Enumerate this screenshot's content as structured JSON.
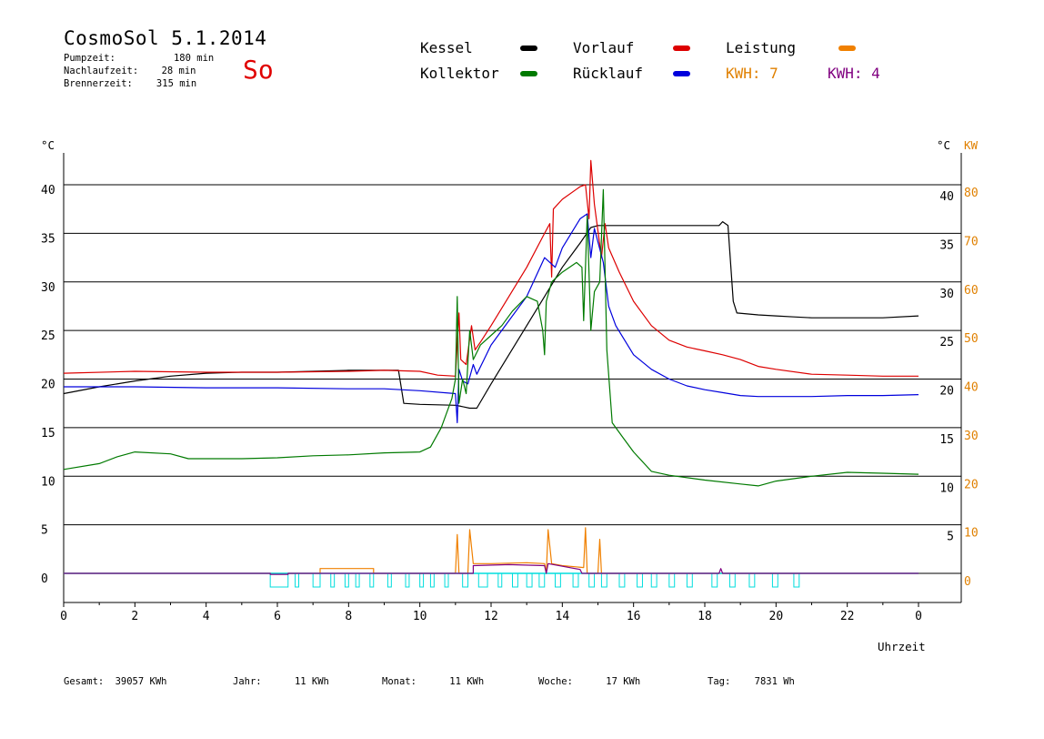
{
  "header": {
    "title": "CosmoSol 5.1.2014",
    "day": "So",
    "stats": [
      {
        "label": "Pumpzeit:",
        "value": "180 min"
      },
      {
        "label": "Nachlaufzeit:",
        "value": "28 min"
      },
      {
        "label": "Brennerzeit:",
        "value": "315 min"
      }
    ]
  },
  "legend": {
    "items": [
      {
        "name": "Kessel",
        "color": "#000000"
      },
      {
        "name": "Vorlauf",
        "color": "#dd0000"
      },
      {
        "name": "Leistung",
        "color": "#f08000"
      },
      {
        "name": "Kollektor",
        "color": "#007a00"
      },
      {
        "name": "Rücklauf",
        "color": "#0000dd"
      }
    ],
    "kwh_orange": "KWH: 7",
    "kwh_purple": "KWH: 4",
    "kwh_orange_color": "#e08000",
    "kwh_purple_color": "#800080"
  },
  "axes": {
    "left_unit": "°C",
    "right_unit_c": "°C",
    "right_unit_kw": "KW",
    "x_label": "Uhrzeit"
  },
  "footer": {
    "gesamt_label": "Gesamt:",
    "gesamt_value": "39057 KWh",
    "jahr_label": "Jahr:",
    "jahr_value": "11 KWh",
    "monat_label": "Monat:",
    "monat_value": "11 KWh",
    "woche_label": "Woche:",
    "woche_value": "17 KWh",
    "tag_label": "Tag:",
    "tag_value": "7831 Wh"
  },
  "chart_data": {
    "type": "line",
    "xlabel": "Uhrzeit",
    "ylabel": "°C",
    "y2label": "KW",
    "xlim": [
      0,
      24
    ],
    "ylim": [
      -3,
      43
    ],
    "x_ticks": [
      "0",
      "2",
      "4",
      "6",
      "8",
      "10",
      "12",
      "14",
      "16",
      "18",
      "20",
      "22",
      "0"
    ],
    "y_ticks": [
      0,
      5,
      10,
      15,
      20,
      25,
      30,
      35,
      40
    ],
    "y_ticks_right": [
      5,
      10,
      15,
      20,
      25,
      30,
      35,
      40
    ],
    "y2_ticks": [
      0,
      10,
      20,
      30,
      40,
      50,
      60,
      70,
      80
    ],
    "gridlines_y": [
      0,
      5,
      10,
      15,
      20,
      25,
      30,
      35,
      40
    ],
    "series": [
      {
        "name": "Kessel",
        "color": "#000000",
        "points": [
          [
            0,
            18.5
          ],
          [
            1,
            19.2
          ],
          [
            2,
            19.8
          ],
          [
            3,
            20.3
          ],
          [
            4,
            20.6
          ],
          [
            5,
            20.7
          ],
          [
            6,
            20.7
          ],
          [
            7,
            20.8
          ],
          [
            8,
            20.9
          ],
          [
            9,
            20.9
          ],
          [
            9.4,
            20.9
          ],
          [
            9.55,
            17.5
          ],
          [
            10,
            17.4
          ],
          [
            11,
            17.3
          ],
          [
            11.15,
            17.2
          ],
          [
            11.4,
            17.0
          ],
          [
            11.6,
            17.0
          ],
          [
            12,
            19.5
          ],
          [
            12.5,
            22.5
          ],
          [
            13,
            25.5
          ],
          [
            13.5,
            28.5
          ],
          [
            14,
            31.5
          ],
          [
            14.5,
            34.0
          ],
          [
            14.8,
            35.6
          ],
          [
            15.0,
            35.8
          ],
          [
            16,
            35.8
          ],
          [
            17,
            35.8
          ],
          [
            18,
            35.8
          ],
          [
            18.4,
            35.8
          ],
          [
            18.5,
            36.2
          ],
          [
            18.65,
            35.8
          ],
          [
            18.8,
            28.0
          ],
          [
            18.9,
            26.8
          ],
          [
            19.5,
            26.6
          ],
          [
            20,
            26.5
          ],
          [
            20.5,
            26.4
          ],
          [
            21,
            26.3
          ],
          [
            22,
            26.3
          ],
          [
            23,
            26.3
          ],
          [
            24,
            26.5
          ]
        ]
      },
      {
        "name": "Vorlauf",
        "color": "#dd0000",
        "points": [
          [
            0,
            20.6
          ],
          [
            2,
            20.8
          ],
          [
            4,
            20.7
          ],
          [
            6,
            20.7
          ],
          [
            8,
            20.8
          ],
          [
            9,
            20.9
          ],
          [
            10,
            20.8
          ],
          [
            10.5,
            20.4
          ],
          [
            11,
            20.3
          ],
          [
            11.1,
            26.8
          ],
          [
            11.15,
            22.0
          ],
          [
            11.3,
            21.5
          ],
          [
            11.45,
            25.5
          ],
          [
            11.55,
            23.0
          ],
          [
            11.7,
            23.8
          ],
          [
            12,
            25.5
          ],
          [
            12.5,
            28.5
          ],
          [
            13,
            31.5
          ],
          [
            13.5,
            35.0
          ],
          [
            13.65,
            36.0
          ],
          [
            13.7,
            30.5
          ],
          [
            13.75,
            37.5
          ],
          [
            14,
            38.5
          ],
          [
            14.5,
            39.8
          ],
          [
            14.65,
            40.0
          ],
          [
            14.75,
            36.5
          ],
          [
            14.8,
            42.5
          ],
          [
            14.9,
            38.0
          ],
          [
            15.1,
            32.5
          ],
          [
            15.2,
            36.0
          ],
          [
            15.3,
            33.5
          ],
          [
            15.6,
            31.0
          ],
          [
            16,
            28.0
          ],
          [
            16.5,
            25.5
          ],
          [
            17,
            24.0
          ],
          [
            17.5,
            23.3
          ],
          [
            18,
            22.9
          ],
          [
            18.5,
            22.5
          ],
          [
            19,
            22.0
          ],
          [
            19.5,
            21.3
          ],
          [
            20,
            21.0
          ],
          [
            21,
            20.5
          ],
          [
            22,
            20.4
          ],
          [
            23,
            20.3
          ],
          [
            24,
            20.3
          ]
        ]
      },
      {
        "name": "Rücklauf",
        "color": "#0000dd",
        "points": [
          [
            0,
            19.2
          ],
          [
            2,
            19.2
          ],
          [
            4,
            19.1
          ],
          [
            6,
            19.1
          ],
          [
            8,
            19.0
          ],
          [
            9,
            19.0
          ],
          [
            10,
            18.8
          ],
          [
            11,
            18.5
          ],
          [
            11.05,
            15.5
          ],
          [
            11.1,
            21.0
          ],
          [
            11.2,
            19.8
          ],
          [
            11.35,
            19.5
          ],
          [
            11.5,
            21.5
          ],
          [
            11.6,
            20.5
          ],
          [
            11.8,
            22.0
          ],
          [
            12,
            23.5
          ],
          [
            12.5,
            26.0
          ],
          [
            13,
            28.5
          ],
          [
            13.5,
            32.5
          ],
          [
            13.8,
            31.5
          ],
          [
            14,
            33.5
          ],
          [
            14.5,
            36.5
          ],
          [
            14.7,
            37.0
          ],
          [
            14.8,
            32.5
          ],
          [
            14.9,
            35.5
          ],
          [
            15.15,
            32.0
          ],
          [
            15.3,
            27.5
          ],
          [
            15.5,
            25.5
          ],
          [
            16,
            22.5
          ],
          [
            16.5,
            21.0
          ],
          [
            17,
            20.0
          ],
          [
            17.5,
            19.3
          ],
          [
            18,
            18.9
          ],
          [
            18.5,
            18.6
          ],
          [
            19,
            18.3
          ],
          [
            19.5,
            18.2
          ],
          [
            20,
            18.2
          ],
          [
            21,
            18.2
          ],
          [
            22,
            18.3
          ],
          [
            23,
            18.3
          ],
          [
            24,
            18.4
          ]
        ]
      },
      {
        "name": "Kollektor",
        "color": "#007a00",
        "points": [
          [
            0,
            10.7
          ],
          [
            1,
            11.3
          ],
          [
            1.5,
            12.0
          ],
          [
            2,
            12.5
          ],
          [
            3,
            12.3
          ],
          [
            3.5,
            11.8
          ],
          [
            4,
            11.8
          ],
          [
            5,
            11.8
          ],
          [
            6,
            11.9
          ],
          [
            7,
            12.1
          ],
          [
            8,
            12.2
          ],
          [
            9,
            12.4
          ],
          [
            10,
            12.5
          ],
          [
            10.3,
            13.0
          ],
          [
            10.6,
            15.0
          ],
          [
            10.9,
            18.0
          ],
          [
            11,
            20.0
          ],
          [
            11.05,
            28.5
          ],
          [
            11.1,
            17.5
          ],
          [
            11.2,
            20.0
          ],
          [
            11.3,
            18.5
          ],
          [
            11.4,
            25.0
          ],
          [
            11.5,
            22.0
          ],
          [
            11.7,
            23.5
          ],
          [
            12,
            24.5
          ],
          [
            12.3,
            25.5
          ],
          [
            12.6,
            27.0
          ],
          [
            13,
            28.5
          ],
          [
            13.3,
            28.0
          ],
          [
            13.45,
            25.0
          ],
          [
            13.5,
            22.5
          ],
          [
            13.55,
            28.0
          ],
          [
            13.7,
            30.0
          ],
          [
            14,
            31.0
          ],
          [
            14.4,
            32.0
          ],
          [
            14.55,
            31.5
          ],
          [
            14.6,
            26.0
          ],
          [
            14.7,
            36.8
          ],
          [
            14.8,
            25.0
          ],
          [
            14.9,
            29.0
          ],
          [
            15.05,
            30.0
          ],
          [
            15.15,
            39.5
          ],
          [
            15.25,
            23.0
          ],
          [
            15.4,
            15.5
          ],
          [
            15.7,
            14.0
          ],
          [
            16,
            12.5
          ],
          [
            16.5,
            10.5
          ],
          [
            17,
            10.1
          ],
          [
            18,
            9.6
          ],
          [
            19,
            9.2
          ],
          [
            19.5,
            9.0
          ],
          [
            20,
            9.5
          ],
          [
            21,
            10.0
          ],
          [
            22,
            10.4
          ],
          [
            23,
            10.3
          ],
          [
            24,
            10.2
          ]
        ]
      },
      {
        "name": "Leistung",
        "color": "#f08000",
        "points": [
          [
            0,
            0
          ],
          [
            7.2,
            0
          ],
          [
            7.2,
            0.5
          ],
          [
            8.7,
            0.5
          ],
          [
            8.7,
            0
          ],
          [
            11.0,
            0
          ],
          [
            11.05,
            4.0
          ],
          [
            11.1,
            0
          ],
          [
            11.35,
            0
          ],
          [
            11.4,
            4.5
          ],
          [
            11.5,
            1.0
          ],
          [
            12.0,
            1.0
          ],
          [
            13.0,
            1.1
          ],
          [
            13.5,
            1.0
          ],
          [
            13.55,
            0
          ],
          [
            13.6,
            4.5
          ],
          [
            13.7,
            1.0
          ],
          [
            14.0,
            0.8
          ],
          [
            14.6,
            0.6
          ],
          [
            14.65,
            4.7
          ],
          [
            14.7,
            0
          ],
          [
            15.0,
            0
          ],
          [
            15.05,
            3.5
          ],
          [
            15.1,
            0
          ],
          [
            24,
            0
          ]
        ]
      },
      {
        "name": "Pumpe",
        "color": "#00dddd",
        "note": "pump on/off pulses",
        "pulses": [
          [
            5.8,
            6.3
          ],
          [
            6.5,
            6.6
          ],
          [
            7.0,
            7.2
          ],
          [
            7.5,
            7.6
          ],
          [
            7.9,
            8.0
          ],
          [
            8.2,
            8.3
          ],
          [
            8.6,
            8.7
          ],
          [
            9.1,
            9.2
          ],
          [
            9.6,
            9.7
          ],
          [
            10.0,
            10.1
          ],
          [
            10.3,
            10.4
          ],
          [
            10.7,
            10.8
          ],
          [
            11.2,
            11.35
          ],
          [
            11.65,
            11.9
          ],
          [
            12.2,
            12.3
          ],
          [
            12.6,
            12.75
          ],
          [
            13.0,
            13.15
          ],
          [
            13.35,
            13.5
          ],
          [
            13.8,
            13.95
          ],
          [
            14.3,
            14.45
          ],
          [
            14.75,
            14.9
          ],
          [
            15.1,
            15.25
          ],
          [
            15.6,
            15.75
          ],
          [
            16.1,
            16.25
          ],
          [
            16.5,
            16.65
          ],
          [
            17.0,
            17.15
          ],
          [
            17.5,
            17.65
          ],
          [
            18.2,
            18.35
          ],
          [
            18.7,
            18.85
          ],
          [
            19.25,
            19.4
          ],
          [
            19.9,
            20.05
          ],
          [
            20.5,
            20.65
          ]
        ]
      },
      {
        "name": "Leistung2",
        "color": "#800080",
        "note": "purple KWH trace",
        "points": [
          [
            0,
            0
          ],
          [
            5.8,
            0
          ],
          [
            5.8,
            -0.1
          ],
          [
            6.3,
            -0.1
          ],
          [
            6.3,
            0
          ],
          [
            11.5,
            0
          ],
          [
            11.5,
            0.8
          ],
          [
            12.5,
            0.9
          ],
          [
            13.5,
            0.8
          ],
          [
            13.55,
            0
          ],
          [
            13.6,
            1.0
          ],
          [
            14.5,
            0.4
          ],
          [
            14.55,
            0
          ],
          [
            18.4,
            0
          ],
          [
            18.45,
            0.5
          ],
          [
            18.5,
            0
          ],
          [
            24,
            0
          ]
        ]
      }
    ]
  }
}
